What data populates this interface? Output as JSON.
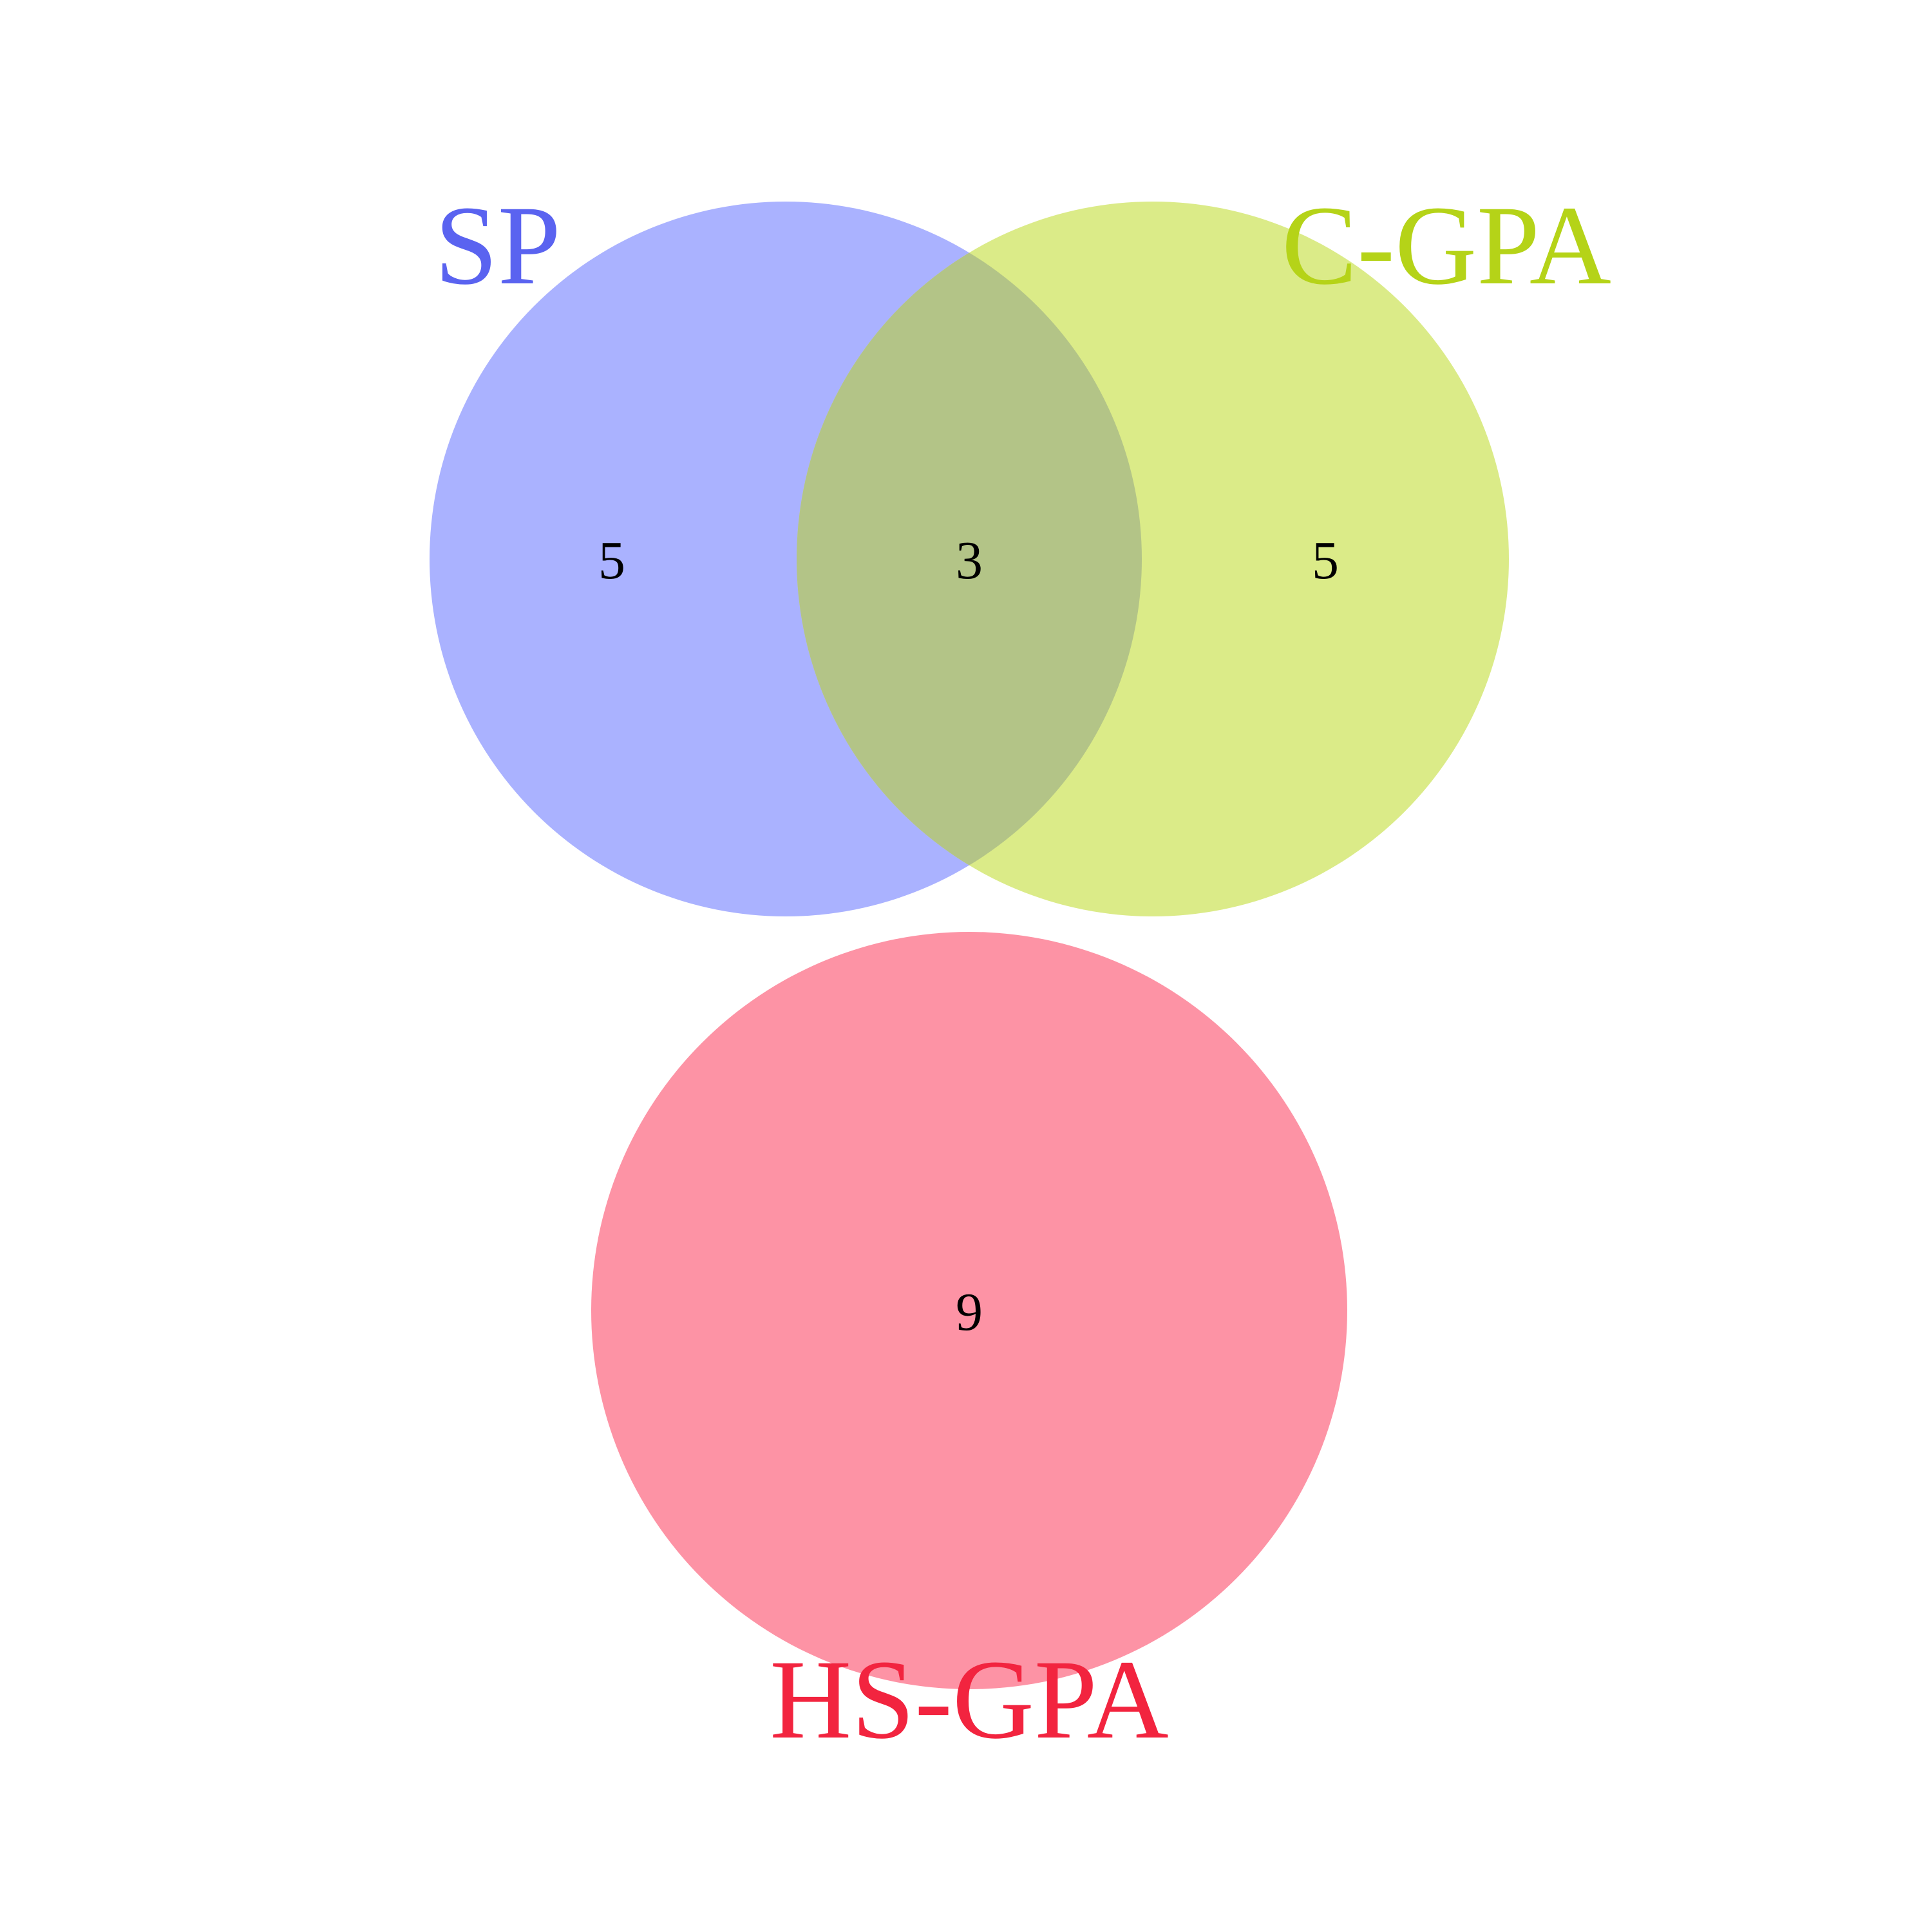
{
  "diagram": {
    "type": "venn",
    "sets": [
      {
        "key": "sp",
        "label": "SP",
        "fill": "#aab2ff",
        "label_color": "#5a63f0"
      },
      {
        "key": "cgpa",
        "label": "C-GPA",
        "fill": "#dbeb88",
        "label_color": "#b5d318"
      },
      {
        "key": "hsgpa",
        "label": "HS-GPA",
        "fill": "#fd93a5",
        "label_color": "#f2243f"
      }
    ],
    "overlap_fill": "#b3c487",
    "regions": {
      "sp_only": "5",
      "sp_and_cgpa": "3",
      "cgpa_only": "5",
      "hsgpa_only": "9"
    }
  }
}
